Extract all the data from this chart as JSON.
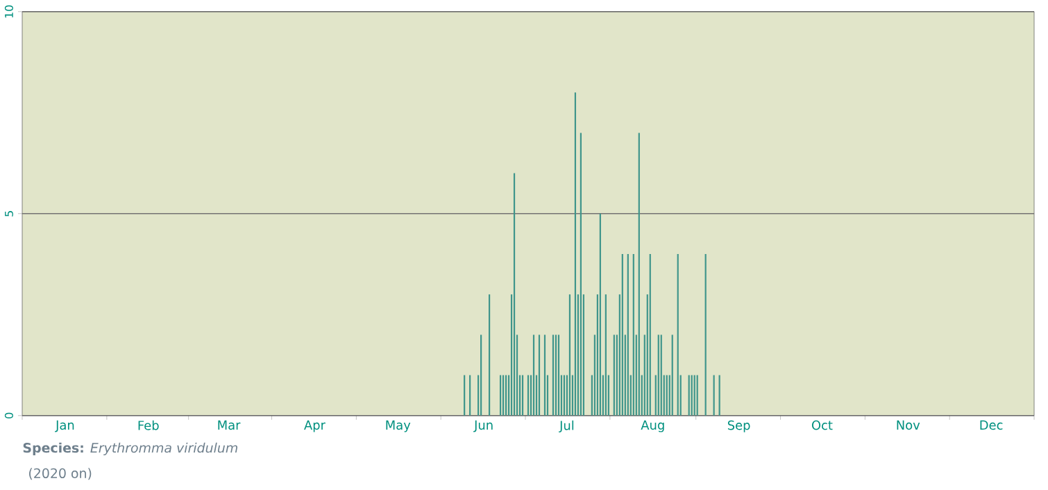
{
  "chart_data": {
    "type": "bar",
    "color": "#3f958b",
    "categories": [
      null,
      null,
      null,
      null,
      null,
      null,
      null,
      null,
      null,
      null,
      null,
      null,
      null,
      null,
      null,
      "Jan",
      null,
      null,
      null,
      null,
      null,
      null,
      null,
      null,
      null,
      null,
      null,
      null,
      null,
      null,
      null,
      null,
      null,
      null,
      null,
      null,
      null,
      null,
      null,
      null,
      null,
      null,
      null,
      null,
      null,
      "Feb",
      null,
      null,
      null,
      null,
      null,
      null,
      null,
      null,
      null,
      null,
      null,
      null,
      null,
      null,
      null,
      null,
      null,
      null,
      null,
      null,
      null,
      null,
      null,
      null,
      null,
      null,
      null,
      null,
      "Mar",
      null,
      null,
      null,
      null,
      null,
      null,
      null,
      null,
      null,
      null,
      null,
      null,
      null,
      null,
      null,
      null,
      null,
      null,
      null,
      null,
      null,
      null,
      null,
      null,
      null,
      null,
      null,
      null,
      null,
      null,
      "Apr",
      null,
      null,
      null,
      null,
      null,
      null,
      null,
      null,
      null,
      null,
      null,
      null,
      null,
      null,
      null,
      null,
      null,
      null,
      null,
      null,
      null,
      null,
      null,
      null,
      null,
      null,
      null,
      null,
      null,
      "May",
      null,
      null,
      null,
      null,
      null,
      null,
      null,
      null,
      null,
      null,
      null,
      null,
      null,
      null,
      null,
      null,
      null,
      null,
      null,
      null,
      null,
      null,
      null,
      null,
      null,
      null,
      null,
      null,
      null,
      null,
      "Jun",
      null,
      null,
      null,
      null,
      null,
      null,
      null,
      null,
      null,
      null,
      null,
      null,
      null,
      null,
      null,
      null,
      null,
      null,
      null,
      null,
      null,
      null,
      null,
      null,
      null,
      null,
      null,
      null,
      null,
      "Jul",
      null,
      null,
      null,
      null,
      null,
      null,
      null,
      null,
      null,
      null,
      null,
      null,
      null,
      null,
      null,
      null,
      null,
      null,
      null,
      null,
      null,
      null,
      null,
      null,
      null,
      null,
      null,
      null,
      null,
      null,
      "Aug",
      null,
      null,
      null,
      null,
      null,
      null,
      null,
      null,
      null,
      null,
      null,
      null,
      null,
      null,
      null,
      null,
      null,
      null,
      null,
      null,
      null,
      null,
      null,
      null,
      null,
      null,
      null,
      null,
      null,
      null,
      "Sep",
      null,
      null,
      null,
      null,
      null,
      null,
      null,
      null,
      null,
      null,
      null,
      null,
      null,
      null,
      null,
      null,
      null,
      null,
      null,
      null,
      null,
      null,
      null,
      null,
      null,
      null,
      null,
      null,
      null,
      "Oct",
      null,
      null,
      null,
      null,
      null,
      null,
      null,
      null,
      null,
      null,
      null,
      null,
      null,
      null,
      null,
      null,
      null,
      null,
      null,
      null,
      null,
      null,
      null,
      null,
      null,
      null,
      null,
      null,
      null,
      null,
      "Nov",
      null,
      null,
      null,
      null,
      null,
      null,
      null,
      null,
      null,
      null,
      null,
      null,
      null,
      null,
      null,
      null,
      null,
      null,
      null,
      null,
      null,
      null,
      null,
      null,
      null,
      null,
      null,
      null,
      null,
      "Dec",
      null,
      null,
      null,
      null,
      null,
      null,
      null,
      null,
      null,
      null,
      null,
      null,
      null,
      null,
      null
    ],
    "values": [
      0,
      0,
      0,
      0,
      0,
      0,
      0,
      0,
      0,
      0,
      0,
      0,
      0,
      0,
      0,
      0,
      0,
      0,
      0,
      0,
      0,
      0,
      0,
      0,
      0,
      0,
      0,
      0,
      0,
      0,
      0,
      0,
      0,
      0,
      0,
      0,
      0,
      0,
      0,
      0,
      0,
      0,
      0,
      0,
      0,
      0,
      0,
      0,
      0,
      0,
      0,
      0,
      0,
      0,
      0,
      0,
      0,
      0,
      0,
      0,
      0,
      0,
      0,
      0,
      0,
      0,
      0,
      0,
      0,
      0,
      0,
      0,
      0,
      0,
      0,
      0,
      0,
      0,
      0,
      0,
      0,
      0,
      0,
      0,
      0,
      0,
      0,
      0,
      0,
      0,
      0,
      0,
      0,
      0,
      0,
      0,
      0,
      0,
      0,
      0,
      0,
      0,
      0,
      0,
      0,
      0,
      0,
      0,
      0,
      0,
      0,
      0,
      0,
      0,
      0,
      0,
      0,
      0,
      0,
      0,
      0,
      0,
      0,
      0,
      0,
      0,
      0,
      0,
      0,
      0,
      0,
      0,
      0,
      0,
      0,
      0,
      0,
      0,
      0,
      0,
      0,
      0,
      0,
      0,
      0,
      0,
      0,
      0,
      0,
      0,
      0,
      0,
      0,
      0,
      0,
      0,
      0,
      0,
      0,
      1,
      0,
      1,
      0,
      0,
      1,
      2,
      0,
      0,
      3,
      0,
      0,
      0,
      1,
      1,
      1,
      1,
      3,
      6,
      2,
      1,
      1,
      0,
      1,
      1,
      2,
      1,
      2,
      0,
      2,
      1,
      0,
      2,
      2,
      2,
      1,
      1,
      1,
      3,
      1,
      8,
      3,
      7,
      3,
      0,
      0,
      1,
      2,
      3,
      5,
      1,
      3,
      1,
      0,
      2,
      2,
      3,
      4,
      2,
      4,
      1,
      4,
      2,
      7,
      1,
      2,
      3,
      4,
      0,
      1,
      2,
      2,
      1,
      1,
      1,
      2,
      0,
      4,
      1,
      0,
      0,
      1,
      1,
      1,
      1,
      0,
      0,
      4,
      0,
      0,
      1,
      0,
      1,
      0,
      0,
      0,
      0,
      0,
      0,
      0,
      0,
      0,
      0,
      0,
      0,
      0,
      0,
      0,
      0,
      0,
      0,
      0,
      0,
      0,
      0,
      0,
      0,
      0,
      0,
      0,
      0,
      0,
      0,
      0,
      0,
      0,
      0,
      0,
      0,
      0,
      0,
      0,
      0,
      0,
      0,
      0,
      0,
      0,
      0,
      0,
      0,
      0,
      0,
      0,
      0,
      0,
      0,
      0,
      0,
      0,
      0,
      0,
      0,
      0,
      0,
      0,
      0,
      0,
      0,
      0,
      0,
      0,
      0,
      0,
      0,
      0,
      0,
      0,
      0,
      0,
      0,
      0,
      0,
      0,
      0,
      0,
      0,
      0,
      0,
      0,
      0,
      0,
      0,
      0,
      0,
      0,
      0,
      0,
      0,
      0,
      0,
      0,
      0,
      0,
      0,
      0,
      0,
      0,
      0,
      0,
      0,
      0,
      0,
      0,
      0,
      0
    ],
    "ylim": [
      0,
      10
    ],
    "yticks": [
      0,
      5,
      10
    ],
    "grid": "y",
    "annotations": [
      "**Species:** *Erythromma viridulum*",
      "(2020 on)"
    ]
  }
}
